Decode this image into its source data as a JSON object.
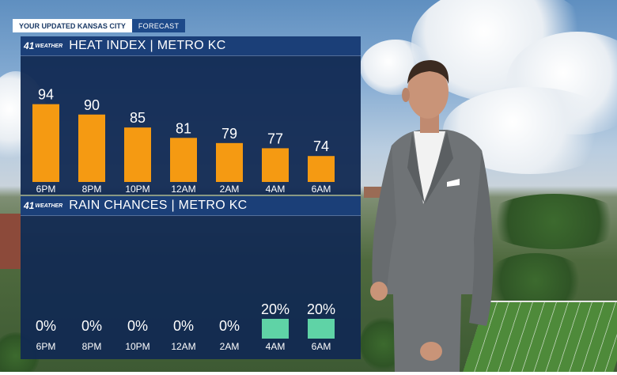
{
  "header": {
    "label": "YOUR UPDATED KANSAS CITY",
    "sublabel": "FORECAST"
  },
  "brand": {
    "number": "41",
    "word": "WEATHER"
  },
  "colors": {
    "heat_bar": "#f59a12",
    "rain_box": "#5fd3a6",
    "panel": "#10285a",
    "title_bar": "#1b3f78"
  },
  "chart_data": [
    {
      "type": "bar",
      "title": "HEAT INDEX | METRO KC",
      "categories": [
        "6PM",
        "8PM",
        "10PM",
        "12AM",
        "2AM",
        "4AM",
        "6AM"
      ],
      "values": [
        94,
        90,
        85,
        81,
        79,
        77,
        74
      ],
      "labels": [
        "94",
        "90",
        "85",
        "81",
        "79",
        "77",
        "74"
      ],
      "ylim": [
        64,
        100
      ],
      "grid": false,
      "color": "#f59a12"
    },
    {
      "type": "bar",
      "title": "RAIN CHANCES | METRO KC",
      "categories": [
        "6PM",
        "8PM",
        "10PM",
        "12AM",
        "2AM",
        "4AM",
        "6AM"
      ],
      "values": [
        0,
        0,
        0,
        0,
        0,
        20,
        20
      ],
      "labels": [
        "0%",
        "0%",
        "0%",
        "0%",
        "0%",
        "20%",
        "20%"
      ],
      "ylim": [
        0,
        100
      ],
      "grid": false,
      "color": "#5fd3a6"
    }
  ]
}
